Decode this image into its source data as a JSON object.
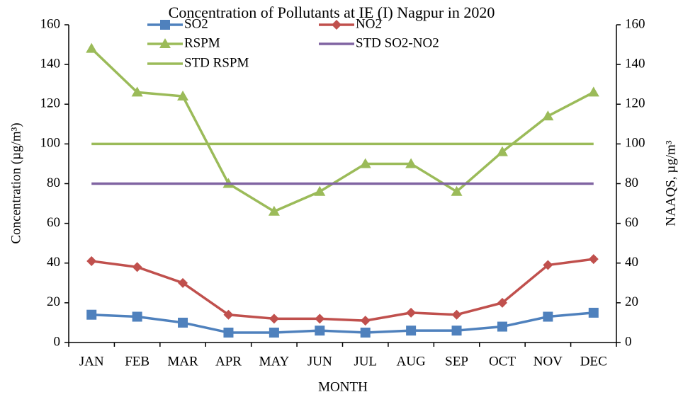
{
  "chart_data": {
    "type": "line",
    "title": "Concentration of Pollutants at IE (I) Nagpur in 2020",
    "x_label": "MONTH",
    "y_label": "Concentration (µg/m³)",
    "y2_label": "NAAQS, µg/m³",
    "categories": [
      "JAN",
      "FEB",
      "MAR",
      "APR",
      "MAY",
      "JUN",
      "JUL",
      "AUG",
      "SEP",
      "OCT",
      "NOV",
      "DEC"
    ],
    "series": [
      {
        "name": "SO2",
        "color": "#4f81bd",
        "marker": "square",
        "values": [
          14,
          13,
          10,
          5,
          5,
          6,
          5,
          6,
          6,
          8,
          13,
          15
        ]
      },
      {
        "name": "NO2",
        "color": "#c0504d",
        "marker": "diamond",
        "values": [
          41,
          38,
          30,
          14,
          12,
          12,
          11,
          15,
          14,
          20,
          39,
          42
        ]
      },
      {
        "name": "RSPM",
        "color": "#9bbb59",
        "marker": "triangle",
        "values": [
          148,
          126,
          124,
          80,
          66,
          76,
          90,
          90,
          76,
          96,
          114,
          126
        ]
      },
      {
        "name": "STD SO2-NO2",
        "color": "#8064a2",
        "values": [
          80,
          80,
          80,
          80,
          80,
          80,
          80,
          80,
          80,
          80,
          80,
          80
        ]
      },
      {
        "name": "STD RSPM",
        "color": "#9bbb59",
        "values": [
          100,
          100,
          100,
          100,
          100,
          100,
          100,
          100,
          100,
          100,
          100,
          100
        ]
      }
    ],
    "ylim": [
      0,
      160
    ],
    "yticks": [
      0,
      20,
      40,
      60,
      80,
      100,
      120,
      140,
      160
    ],
    "y2lim": [
      0,
      160
    ],
    "y2ticks": [
      0,
      20,
      40,
      60,
      80,
      100,
      120,
      140,
      160
    ],
    "grid": false,
    "legend": "top"
  }
}
